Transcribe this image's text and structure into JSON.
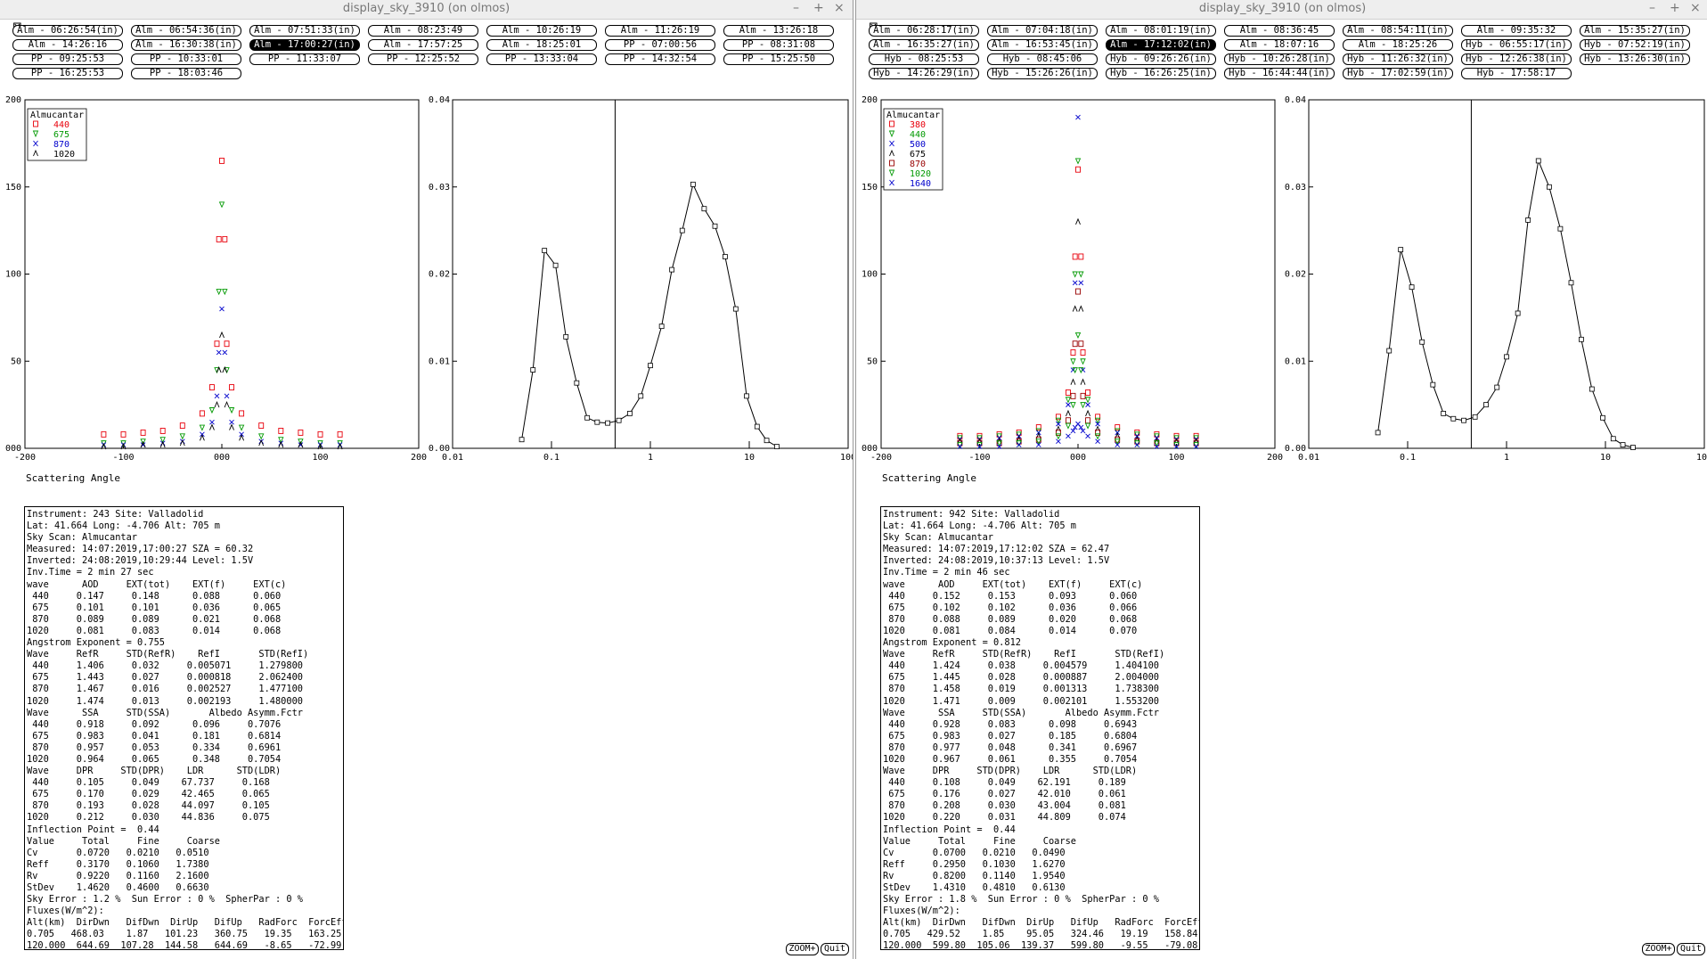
{
  "windows": [
    {
      "title": "display_sky_3910 (on olmos)",
      "buttons": [
        [
          "Alm - 06:26:54(in)",
          "Alm - 06:54:36(in)",
          "Alm - 07:51:33(in)",
          "Alm - 08:23:49",
          "Alm - 10:26:19",
          "Alm - 11:26:19",
          "Alm - 13:26:18"
        ],
        [
          "Alm - 14:26:16",
          "Alm - 16:30:38(in)",
          "Alm - 17:00:27(in)",
          "Alm - 17:57:25",
          "Alm - 18:25:01",
          "PP - 07:00:56",
          "PP - 08:31:08"
        ],
        [
          "PP - 09:25:53",
          "PP - 10:33:01",
          "PP - 11:33:07",
          "PP - 12:25:52",
          "PP - 13:33:04",
          "PP - 14:32:54",
          "PP - 15:25:50"
        ],
        [
          "PP - 16:25:53",
          "PP - 18:03:46"
        ]
      ],
      "selected": "Alm - 17:00:27(in)",
      "info_text": "Instrument: 243 Site: Valladolid\nLat: 41.664 Long: -4.706 Alt: 705 m\nSky Scan: Almucantar\nMeasured: 14:07:2019,17:00:27 SZA = 60.32\nInverted: 24:08:2019,10:29:44 Level: 1.5V\nInv.Time = 2 min 27 sec\nwave      AOD     EXT(tot)    EXT(f)     EXT(c)\n 440     0.147     0.148      0.088      0.060\n 675     0.101     0.101      0.036      0.065\n 870     0.089     0.089      0.021      0.068\n1020     0.081     0.083      0.014      0.068\nAngstrom Exponent = 0.755\nWave     RefR     STD(RefR)    RefI       STD(RefI)\n 440     1.406     0.032     0.005071     1.279800\n 675     1.443     0.027     0.000818     2.062400\n 870     1.467     0.016     0.002527     1.477100\n1020     1.474     0.013     0.002193     1.480000\nWave      SSA     STD(SSA)       Albedo Asymm.Fctr\n 440     0.918     0.092      0.096     0.7076\n 675     0.983     0.041      0.181     0.6814\n 870     0.957     0.053      0.334     0.6961\n1020     0.964     0.065      0.348     0.7054\nWave     DPR     STD(DPR)    LDR      STD(LDR)\n 440     0.105     0.049    67.737     0.168\n 675     0.170     0.029    42.465     0.065\n 870     0.193     0.028    44.097     0.105\n1020     0.212     0.030    44.836     0.075\nInflection Point =  0.44\nValue     Total     Fine     Coarse\nCv       0.0720   0.0210   0.0510\nReff     0.3170   0.1060   1.7380\nRv       0.9220   0.1160   2.1600\nStDev    1.4620   0.4600   0.6630\nSky Error : 1.2 %  Sun Error : 0 %  SpherPar : 0 %\nFluxes(W/m^2):\nAlt(km)  DirDwn   DifDwn  DirUp   DifUp   RadForc  ForcEff\n0.705   468.03    1.87   101.23   360.75   19.35   163.25\n120.000  644.69  107.28  144.58   644.69   -8.65   -72.99",
      "legend": {
        "title": "Almucantar",
        "entries": [
          {
            "label": "440",
            "color": "#e8000b",
            "sym": "sq"
          },
          {
            "label": "675",
            "color": "#009900",
            "sym": "tri"
          },
          {
            "label": "870",
            "color": "#0000cc",
            "sym": "x"
          },
          {
            "label": "1020",
            "color": "#000000",
            "sym": "lam"
          }
        ]
      },
      "size_dist": {
        "x": [
          0.05,
          0.065,
          0.085,
          0.11,
          0.14,
          0.18,
          0.23,
          0.29,
          0.37,
          0.48,
          0.62,
          0.8,
          1.0,
          1.3,
          1.65,
          2.1,
          2.7,
          3.5,
          4.5,
          5.7,
          7.3,
          9.4,
          12,
          15,
          19
        ],
        "y": [
          0.001,
          0.009,
          0.0227,
          0.021,
          0.0128,
          0.0075,
          0.0035,
          0.003,
          0.0029,
          0.0032,
          0.004,
          0.006,
          0.0095,
          0.014,
          0.0205,
          0.025,
          0.0303,
          0.0275,
          0.0255,
          0.022,
          0.016,
          0.006,
          0.0025,
          0.0009,
          0.0002
        ]
      }
    },
    {
      "title": "display_sky_3910 (on olmos)",
      "buttons": [
        [
          "Alm - 06:28:17(in)",
          "Alm - 07:04:18(in)",
          "Alm - 08:01:19(in)",
          "Alm - 08:36:45",
          "Alm - 08:54:11(in)",
          "Alm - 09:35:32",
          "Alm - 15:35:27(in)"
        ],
        [
          "Alm - 16:35:27(in)",
          "Alm - 16:53:45(in)",
          "Alm - 17:12:02(in)",
          "Alm - 18:07:16",
          "Alm - 18:25:26",
          "Hyb - 06:55:17(in)",
          "Hyb - 07:52:19(in)"
        ],
        [
          "Hyb - 08:25:53",
          "Hyb - 08:45:06",
          "Hyb - 09:26:26(in)",
          "Hyb - 10:26:28(in)",
          "Hyb - 11:26:32(in)",
          "Hyb - 12:26:38(in)",
          "Hyb - 13:26:30(in)"
        ],
        [
          "Hyb - 14:26:29(in)",
          "Hyb - 15:26:26(in)",
          "Hyb - 16:26:25(in)",
          "Hyb - 16:44:44(in)",
          "Hyb - 17:02:59(in)",
          "Hyb - 17:58:17"
        ]
      ],
      "selected": "Alm - 17:12:02(in)",
      "info_text": "Instrument: 942 Site: Valladolid\nLat: 41.664 Long: -4.706 Alt: 705 m\nSky Scan: Almucantar\nMeasured: 14:07:2019,17:12:02 SZA = 62.47\nInverted: 24:08:2019,10:37:13 Level: 1.5V\nInv.Time = 2 min 46 sec\nwave      AOD     EXT(tot)    EXT(f)     EXT(c)\n 440     0.152     0.153      0.093      0.060\n 675     0.102     0.102      0.036      0.066\n 870     0.088     0.089      0.020      0.068\n1020     0.081     0.084      0.014      0.070\nAngstrom Exponent = 0.812\nWave     RefR     STD(RefR)    RefI       STD(RefI)\n 440     1.424     0.038     0.004579     1.404100\n 675     1.445     0.028     0.000887     2.004000\n 870     1.458     0.019     0.001313     1.738300\n1020     1.471     0.009     0.002101     1.553200\nWave      SSA     STD(SSA)       Albedo Asymm.Fctr\n 440     0.928     0.083      0.098     0.6943\n 675     0.983     0.027      0.185     0.6804\n 870     0.977     0.048      0.341     0.6967\n1020     0.967     0.061      0.355     0.7054\nWave     DPR     STD(DPR)    LDR      STD(LDR)\n 440     0.108     0.049    62.191     0.189\n 675     0.176     0.027    42.010     0.061\n 870     0.208     0.030    43.004     0.081\n1020     0.220     0.031    44.809     0.074\nInflection Point =  0.44\nValue     Total     Fine     Coarse\nCv       0.0700   0.0210   0.0490\nReff     0.2950   0.1030   1.6270\nRv       0.8200   0.1140   1.9540\nStDev    1.4310   0.4810   0.6130\nSky Error : 1.8 %  Sun Error : 0 %  SpherPar : 0 %\nFluxes(W/m^2):\nAlt(km)  DirDwn   DifDwn  DirUp   DifUp   RadForc  ForcEff\n0.705   429.52    1.85    95.05   324.46   19.19   158.84\n120.000  599.80  105.06  139.37   599.80   -9.55   -79.08",
      "legend": {
        "title": "Almucantar",
        "entries": [
          {
            "label": "380",
            "color": "#e8000b",
            "sym": "sq"
          },
          {
            "label": "440",
            "color": "#009900",
            "sym": "tri"
          },
          {
            "label": "500",
            "color": "#0000cc",
            "sym": "x"
          },
          {
            "label": "675",
            "color": "#000000",
            "sym": "lam"
          },
          {
            "label": "870",
            "color": "#990000",
            "sym": "sq"
          },
          {
            "label": "1020",
            "color": "#009900",
            "sym": "tri"
          },
          {
            "label": "1640",
            "color": "#0000cc",
            "sym": "x"
          }
        ]
      },
      "size_dist": {
        "x": [
          0.05,
          0.065,
          0.085,
          0.11,
          0.14,
          0.18,
          0.23,
          0.29,
          0.37,
          0.48,
          0.62,
          0.8,
          1.0,
          1.3,
          1.65,
          2.1,
          2.7,
          3.5,
          4.5,
          5.7,
          7.3,
          9.4,
          12,
          15,
          19
        ],
        "y": [
          0.0018,
          0.0112,
          0.0228,
          0.0185,
          0.0122,
          0.0073,
          0.004,
          0.0034,
          0.0032,
          0.0036,
          0.005,
          0.007,
          0.0105,
          0.0155,
          0.0262,
          0.033,
          0.03,
          0.0252,
          0.019,
          0.0125,
          0.0068,
          0.0035,
          0.0011,
          0.0004,
          0.0001
        ]
      }
    }
  ],
  "axis": {
    "left_ticks": [
      "-200",
      "-100",
      "000",
      "100",
      "200"
    ],
    "left_yticks": [
      "000",
      "50",
      "100",
      "150",
      "200"
    ],
    "right_xticks": [
      "0.01",
      "0.1",
      "1",
      "10",
      "100"
    ],
    "right_yticks": [
      "0.00",
      "0.01",
      "0.02",
      "0.03",
      "0.04"
    ],
    "xlabel": "Scattering Angle"
  },
  "controls": {
    "zoom": "ZOOM+",
    "quit": "Quit"
  },
  "chart_data": [
    {
      "type": "scatter",
      "xlabel": "Scattering Angle",
      "xlim": [
        -200,
        200
      ],
      "ylim": [
        0,
        200
      ],
      "legend_title": "Almucantar",
      "series": [
        {
          "name": "440",
          "x": [
            -120,
            -100,
            -80,
            -60,
            -40,
            -20,
            -10,
            -5,
            -3,
            0,
            3,
            5,
            10,
            20,
            40,
            60,
            80,
            100,
            120
          ],
          "y": [
            8,
            8,
            9,
            10,
            13,
            20,
            35,
            60,
            120,
            165,
            120,
            60,
            35,
            20,
            13,
            10,
            9,
            8,
            8
          ]
        },
        {
          "name": "675",
          "x": [
            -120,
            -100,
            -80,
            -60,
            -40,
            -20,
            -10,
            -5,
            -3,
            0,
            3,
            5,
            10,
            20,
            40,
            60,
            80,
            100,
            120
          ],
          "y": [
            3,
            3,
            4,
            5,
            7,
            12,
            22,
            45,
            90,
            140,
            90,
            45,
            22,
            12,
            7,
            5,
            4,
            3,
            3
          ]
        },
        {
          "name": "870",
          "x": [
            -120,
            -100,
            -80,
            -60,
            -40,
            -20,
            -10,
            -5,
            -3,
            0,
            3,
            5,
            10,
            20,
            40,
            60,
            80,
            100,
            120
          ],
          "y": [
            2,
            2,
            2,
            3,
            4,
            8,
            15,
            30,
            55,
            80,
            55,
            30,
            15,
            8,
            4,
            3,
            2,
            2,
            2
          ]
        },
        {
          "name": "1020",
          "x": [
            -120,
            -100,
            -80,
            -60,
            -40,
            -20,
            -10,
            -5,
            -3,
            0,
            3,
            5,
            10,
            20,
            40,
            60,
            80,
            100,
            120
          ],
          "y": [
            1,
            1,
            2,
            2,
            3,
            6,
            12,
            25,
            45,
            65,
            45,
            25,
            12,
            6,
            3,
            2,
            2,
            1,
            1
          ]
        }
      ]
    },
    {
      "type": "line",
      "xscale": "log",
      "xlim": [
        0.01,
        100
      ],
      "ylim": [
        0,
        0.04
      ],
      "series": [
        {
          "x": [
            0.05,
            0.065,
            0.085,
            0.11,
            0.14,
            0.18,
            0.23,
            0.29,
            0.37,
            0.48,
            0.62,
            0.8,
            1.0,
            1.3,
            1.65,
            2.1,
            2.7,
            3.5,
            4.5,
            5.7,
            7.3,
            9.4,
            12,
            15,
            19
          ],
          "y": [
            0.001,
            0.009,
            0.0227,
            0.021,
            0.0128,
            0.0075,
            0.0035,
            0.003,
            0.0029,
            0.0032,
            0.004,
            0.006,
            0.0095,
            0.014,
            0.0205,
            0.025,
            0.0303,
            0.0275,
            0.0255,
            0.022,
            0.016,
            0.006,
            0.0025,
            0.0009,
            0.0002
          ]
        }
      ]
    },
    {
      "type": "scatter",
      "xlabel": "Scattering Angle",
      "xlim": [
        -200,
        200
      ],
      "ylim": [
        0,
        200
      ],
      "legend_title": "Almucantar",
      "series": [
        {
          "name": "380",
          "x": [
            -120,
            -100,
            -80,
            -60,
            -40,
            -20,
            -10,
            -5,
            -3,
            0,
            3,
            5,
            10,
            20,
            40,
            60,
            80,
            100,
            120
          ],
          "y": [
            7,
            7,
            8,
            9,
            12,
            18,
            32,
            55,
            110,
            160,
            110,
            55,
            32,
            18,
            12,
            9,
            8,
            7,
            7
          ]
        },
        {
          "name": "440",
          "x": [
            -120,
            -100,
            -80,
            -60,
            -40,
            -20,
            -10,
            -5,
            -3,
            0,
            3,
            5,
            10,
            20,
            40,
            60,
            80,
            100,
            120
          ],
          "y": [
            6,
            6,
            7,
            8,
            10,
            16,
            28,
            50,
            100,
            165,
            100,
            50,
            28,
            16,
            10,
            8,
            7,
            6,
            6
          ]
        },
        {
          "name": "500",
          "x": [
            -120,
            -100,
            -80,
            -60,
            -40,
            -20,
            -10,
            -5,
            -3,
            0,
            3,
            5,
            10,
            20,
            40,
            60,
            80,
            100,
            120
          ],
          "y": [
            5,
            5,
            6,
            7,
            9,
            14,
            25,
            45,
            95,
            190,
            95,
            45,
            25,
            14,
            9,
            7,
            6,
            5,
            5
          ]
        },
        {
          "name": "675",
          "x": [
            -120,
            -100,
            -80,
            -60,
            -40,
            -20,
            -10,
            -5,
            -3,
            0,
            3,
            5,
            10,
            20,
            40,
            60,
            80,
            100,
            120
          ],
          "y": [
            4,
            4,
            4,
            5,
            7,
            11,
            20,
            38,
            80,
            130,
            80,
            38,
            20,
            11,
            7,
            5,
            4,
            4,
            4
          ]
        },
        {
          "name": "870",
          "x": [
            -120,
            -100,
            -80,
            -60,
            -40,
            -20,
            -10,
            -5,
            -3,
            0,
            3,
            5,
            10,
            20,
            40,
            60,
            80,
            100,
            120
          ],
          "y": [
            3,
            3,
            3,
            4,
            5,
            9,
            16,
            30,
            60,
            90,
            60,
            30,
            16,
            9,
            5,
            4,
            3,
            3,
            3
          ]
        },
        {
          "name": "1020",
          "x": [
            -120,
            -100,
            -80,
            -60,
            -40,
            -20,
            -10,
            -5,
            -3,
            0,
            3,
            5,
            10,
            20,
            40,
            60,
            80,
            100,
            120
          ],
          "y": [
            2,
            2,
            3,
            3,
            4,
            7,
            13,
            25,
            45,
            65,
            45,
            25,
            13,
            7,
            4,
            3,
            3,
            2,
            2
          ]
        },
        {
          "name": "1640",
          "x": [
            -120,
            -100,
            -80,
            -60,
            -40,
            -20,
            -10,
            -5,
            -3,
            0,
            3,
            5,
            10,
            20,
            40,
            60,
            80,
            100,
            120
          ],
          "y": [
            1,
            1,
            1,
            2,
            2,
            4,
            7,
            10,
            12,
            14,
            12,
            10,
            7,
            4,
            2,
            2,
            1,
            1,
            1
          ]
        }
      ]
    },
    {
      "type": "line",
      "xscale": "log",
      "xlim": [
        0.01,
        100
      ],
      "ylim": [
        0,
        0.04
      ],
      "series": [
        {
          "x": [
            0.05,
            0.065,
            0.085,
            0.11,
            0.14,
            0.18,
            0.23,
            0.29,
            0.37,
            0.48,
            0.62,
            0.8,
            1.0,
            1.3,
            1.65,
            2.1,
            2.7,
            3.5,
            4.5,
            5.7,
            7.3,
            9.4,
            12,
            15,
            19
          ],
          "y": [
            0.0018,
            0.0112,
            0.0228,
            0.0185,
            0.0122,
            0.0073,
            0.004,
            0.0034,
            0.0032,
            0.0036,
            0.005,
            0.007,
            0.0105,
            0.0155,
            0.0262,
            0.033,
            0.03,
            0.0252,
            0.019,
            0.0125,
            0.0068,
            0.0035,
            0.0011,
            0.0004,
            0.0001
          ]
        }
      ]
    }
  ]
}
